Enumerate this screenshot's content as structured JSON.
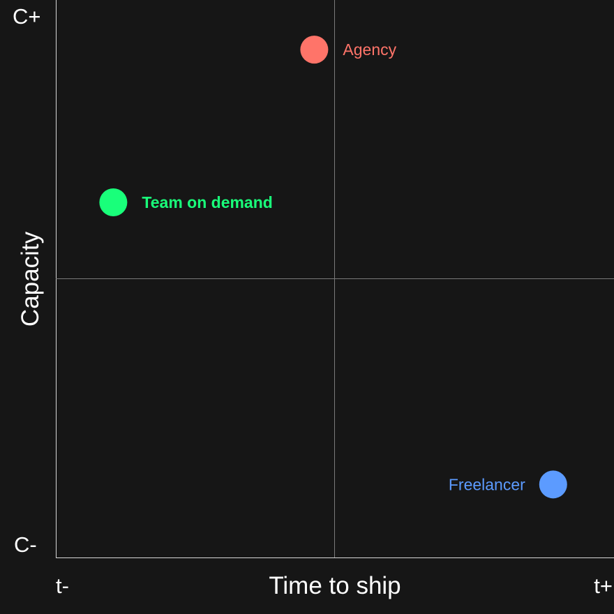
{
  "chart_data": {
    "type": "scatter",
    "xlabel": "Time to ship",
    "ylabel": "Capacity",
    "x_tick_labels": {
      "min": "t-",
      "max": "t+"
    },
    "y_tick_labels": {
      "min": "C-",
      "max": "C+"
    },
    "xlim": [
      0,
      1
    ],
    "ylim": [
      0,
      1
    ],
    "midlines": {
      "x": 0.5,
      "y": 0.5
    },
    "grid": false,
    "points": [
      {
        "label": "Agency",
        "x": 0.463,
        "y": 0.911,
        "color": "#FF7469",
        "label_side": "right",
        "bold": false
      },
      {
        "label": "Team on demand",
        "x": 0.103,
        "y": 0.637,
        "color": "#19FF7A",
        "label_side": "right",
        "bold": true
      },
      {
        "label": "Freelancer",
        "x": 0.891,
        "y": 0.131,
        "color": "#5C9BFF",
        "label_side": "left",
        "bold": false
      }
    ]
  }
}
